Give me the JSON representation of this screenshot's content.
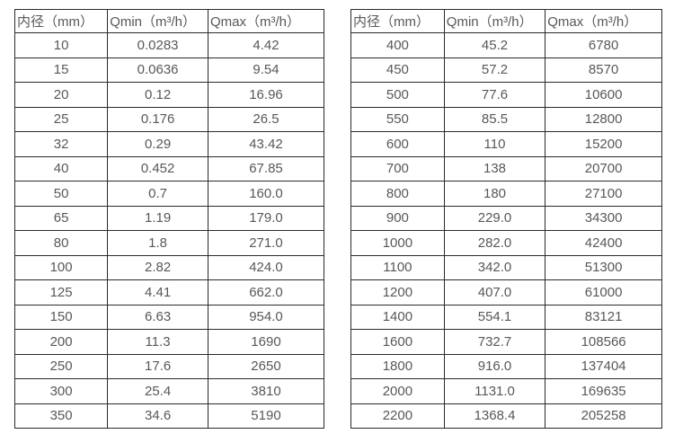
{
  "colors": {
    "background": "#ffffff",
    "border": "#2a2a2a",
    "text": "#58585a"
  },
  "tables": [
    {
      "name": "small-diameter-flow-table",
      "headers": [
        "内径（mm）",
        "Qmin（m³/h）",
        "Qmax（m³/h）"
      ],
      "rows": [
        [
          "10",
          "0.0283",
          "4.42"
        ],
        [
          "15",
          "0.0636",
          "9.54"
        ],
        [
          "20",
          "0.12",
          "16.96"
        ],
        [
          "25",
          "0.176",
          "26.5"
        ],
        [
          "32",
          "0.29",
          "43.42"
        ],
        [
          "40",
          "0.452",
          "67.85"
        ],
        [
          "50",
          "0.7",
          "160.0"
        ],
        [
          "65",
          "1.19",
          "179.0"
        ],
        [
          "80",
          "1.8",
          "271.0"
        ],
        [
          "100",
          "2.82",
          "424.0"
        ],
        [
          "125",
          "4.41",
          "662.0"
        ],
        [
          "150",
          "6.63",
          "954.0"
        ],
        [
          "200",
          "11.3",
          "1690"
        ],
        [
          "250",
          "17.6",
          "2650"
        ],
        [
          "300",
          "25.4",
          "3810"
        ],
        [
          "350",
          "34.6",
          "5190"
        ]
      ]
    },
    {
      "name": "large-diameter-flow-table",
      "headers": [
        "内径（mm）",
        "Qmin（m³/h）",
        "Qmax（m³/h）"
      ],
      "rows": [
        [
          "400",
          "45.2",
          "6780"
        ],
        [
          "450",
          "57.2",
          "8570"
        ],
        [
          "500",
          "77.6",
          "10600"
        ],
        [
          "550",
          "85.5",
          "12800"
        ],
        [
          "600",
          "110",
          "15200"
        ],
        [
          "700",
          "138",
          "20700"
        ],
        [
          "800",
          "180",
          "27100"
        ],
        [
          "900",
          "229.0",
          "34300"
        ],
        [
          "1000",
          "282.0",
          "42400"
        ],
        [
          "1100",
          "342.0",
          "51300"
        ],
        [
          "1200",
          "407.0",
          "61000"
        ],
        [
          "1400",
          "554.1",
          "83121"
        ],
        [
          "1600",
          "732.7",
          "108566"
        ],
        [
          "1800",
          "916.0",
          "137404"
        ],
        [
          "2000",
          "1131.0",
          "169635"
        ],
        [
          "2200",
          "1368.4",
          "205258"
        ]
      ]
    }
  ]
}
